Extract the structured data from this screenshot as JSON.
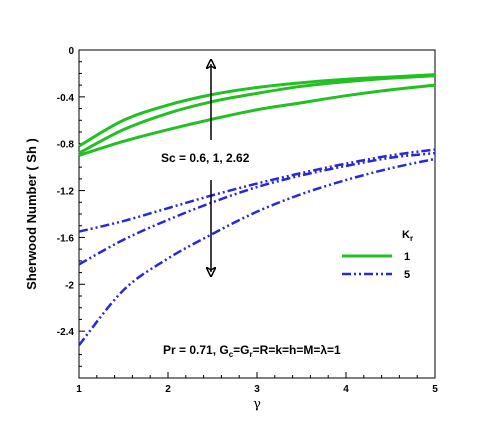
{
  "chart_data": {
    "type": "line",
    "xlabel": "γ",
    "ylabel": "Sherwood Number ( Sh )",
    "xlim": [
      1,
      5
    ],
    "ylim": [
      -2.8,
      0
    ],
    "x_ticks": [
      "1",
      "2",
      "3",
      "4",
      "5"
    ],
    "y_ticks": [
      "0",
      "-0.4",
      "-0.8",
      "-1.2",
      "-1.6",
      "-2",
      "-2.4"
    ],
    "x_tick_values": [
      1,
      2,
      3,
      4,
      5
    ],
    "y_tick_values": [
      0,
      -0.4,
      -0.8,
      -1.2,
      -1.6,
      -2,
      -2.4
    ],
    "grid": false,
    "legend": {
      "title_main": "K",
      "title_sub": "r",
      "placement": "right",
      "entries": [
        {
          "label": "1",
          "color": "#22c022",
          "style": "solid"
        },
        {
          "label": "5",
          "color": "#2828d8",
          "style": "dashdotdot"
        }
      ]
    },
    "annotations": {
      "sc": "Sc = 0.6, 1, 2.62",
      "pr": "Pr = 0.71, G",
      "pr_sub1": "c",
      "pr_mid": "=G",
      "pr_sub2": "r",
      "pr_rest": "=R=k=h=M=λ=1"
    },
    "series": [
      {
        "group": "1",
        "color": "#22c022",
        "style": "solid",
        "x": [
          1,
          1.5,
          2,
          2.5,
          3,
          3.5,
          4,
          4.5,
          5
        ],
        "y": [
          -0.82,
          -0.6,
          -0.47,
          -0.38,
          -0.32,
          -0.28,
          -0.25,
          -0.23,
          -0.21
        ]
      },
      {
        "group": "1",
        "color": "#22c022",
        "style": "solid",
        "x": [
          1,
          1.5,
          2,
          2.5,
          3,
          3.5,
          4,
          4.5,
          5
        ],
        "y": [
          -0.88,
          -0.68,
          -0.54,
          -0.44,
          -0.37,
          -0.31,
          -0.27,
          -0.24,
          -0.22
        ]
      },
      {
        "group": "1",
        "color": "#22c022",
        "style": "solid",
        "x": [
          1,
          1.5,
          2,
          2.5,
          3,
          3.5,
          4,
          4.5,
          5
        ],
        "y": [
          -0.9,
          -0.78,
          -0.68,
          -0.59,
          -0.51,
          -0.45,
          -0.39,
          -0.34,
          -0.3
        ]
      },
      {
        "group": "5",
        "color": "#2828d8",
        "style": "dashdotdot",
        "x": [
          1,
          1.5,
          2,
          2.5,
          3,
          3.5,
          4,
          4.5,
          5
        ],
        "y": [
          -1.55,
          -1.46,
          -1.35,
          -1.24,
          -1.14,
          -1.05,
          -0.97,
          -0.9,
          -0.85
        ]
      },
      {
        "group": "5",
        "color": "#2828d8",
        "style": "dashdotdot",
        "x": [
          1,
          1.5,
          2,
          2.5,
          3,
          3.5,
          4,
          4.5,
          5
        ],
        "y": [
          -1.83,
          -1.62,
          -1.45,
          -1.3,
          -1.17,
          -1.07,
          -0.99,
          -0.92,
          -0.88
        ]
      },
      {
        "group": "5",
        "color": "#2828d8",
        "style": "dashdotdot",
        "x": [
          1,
          1.5,
          2,
          2.5,
          3,
          3.5,
          4,
          4.5,
          5
        ],
        "y": [
          -2.52,
          -2.05,
          -1.78,
          -1.57,
          -1.38,
          -1.23,
          -1.11,
          -1.01,
          -0.93
        ]
      }
    ]
  }
}
